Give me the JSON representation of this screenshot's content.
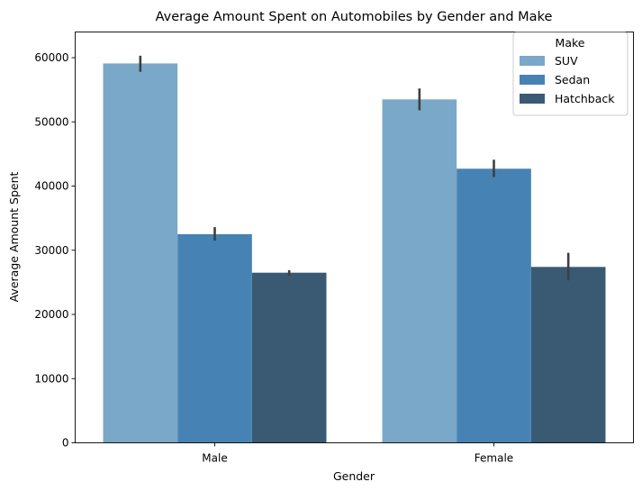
{
  "chart_data": {
    "type": "bar",
    "title": "Average Amount Spent on Automobiles by Gender and Make",
    "xlabel": "Gender",
    "ylabel": "Average Amount Spent",
    "categories": [
      "Male",
      "Female"
    ],
    "series": [
      {
        "name": "SUV",
        "color": "#7aa8c9",
        "values": [
          59100,
          53500
        ],
        "error_low": [
          57800,
          51800
        ],
        "error_high": [
          60300,
          55200
        ]
      },
      {
        "name": "Sedan",
        "color": "#4683b4",
        "values": [
          32500,
          42700
        ],
        "error_low": [
          31500,
          41400
        ],
        "error_high": [
          33600,
          44100
        ]
      },
      {
        "name": "Hatchback",
        "color": "#3a5a74",
        "values": [
          26500,
          27400
        ],
        "error_low": [
          26000,
          25300
        ],
        "error_high": [
          26900,
          29600
        ]
      }
    ],
    "ylim": [
      0,
      64000
    ],
    "yticks": [
      0,
      10000,
      20000,
      30000,
      40000,
      50000,
      60000
    ],
    "ytick_labels": [
      "0",
      "10000",
      "20000",
      "30000",
      "40000",
      "50000",
      "60000"
    ],
    "legend": {
      "title": "Make",
      "placement": "top-right"
    },
    "grid": false
  }
}
